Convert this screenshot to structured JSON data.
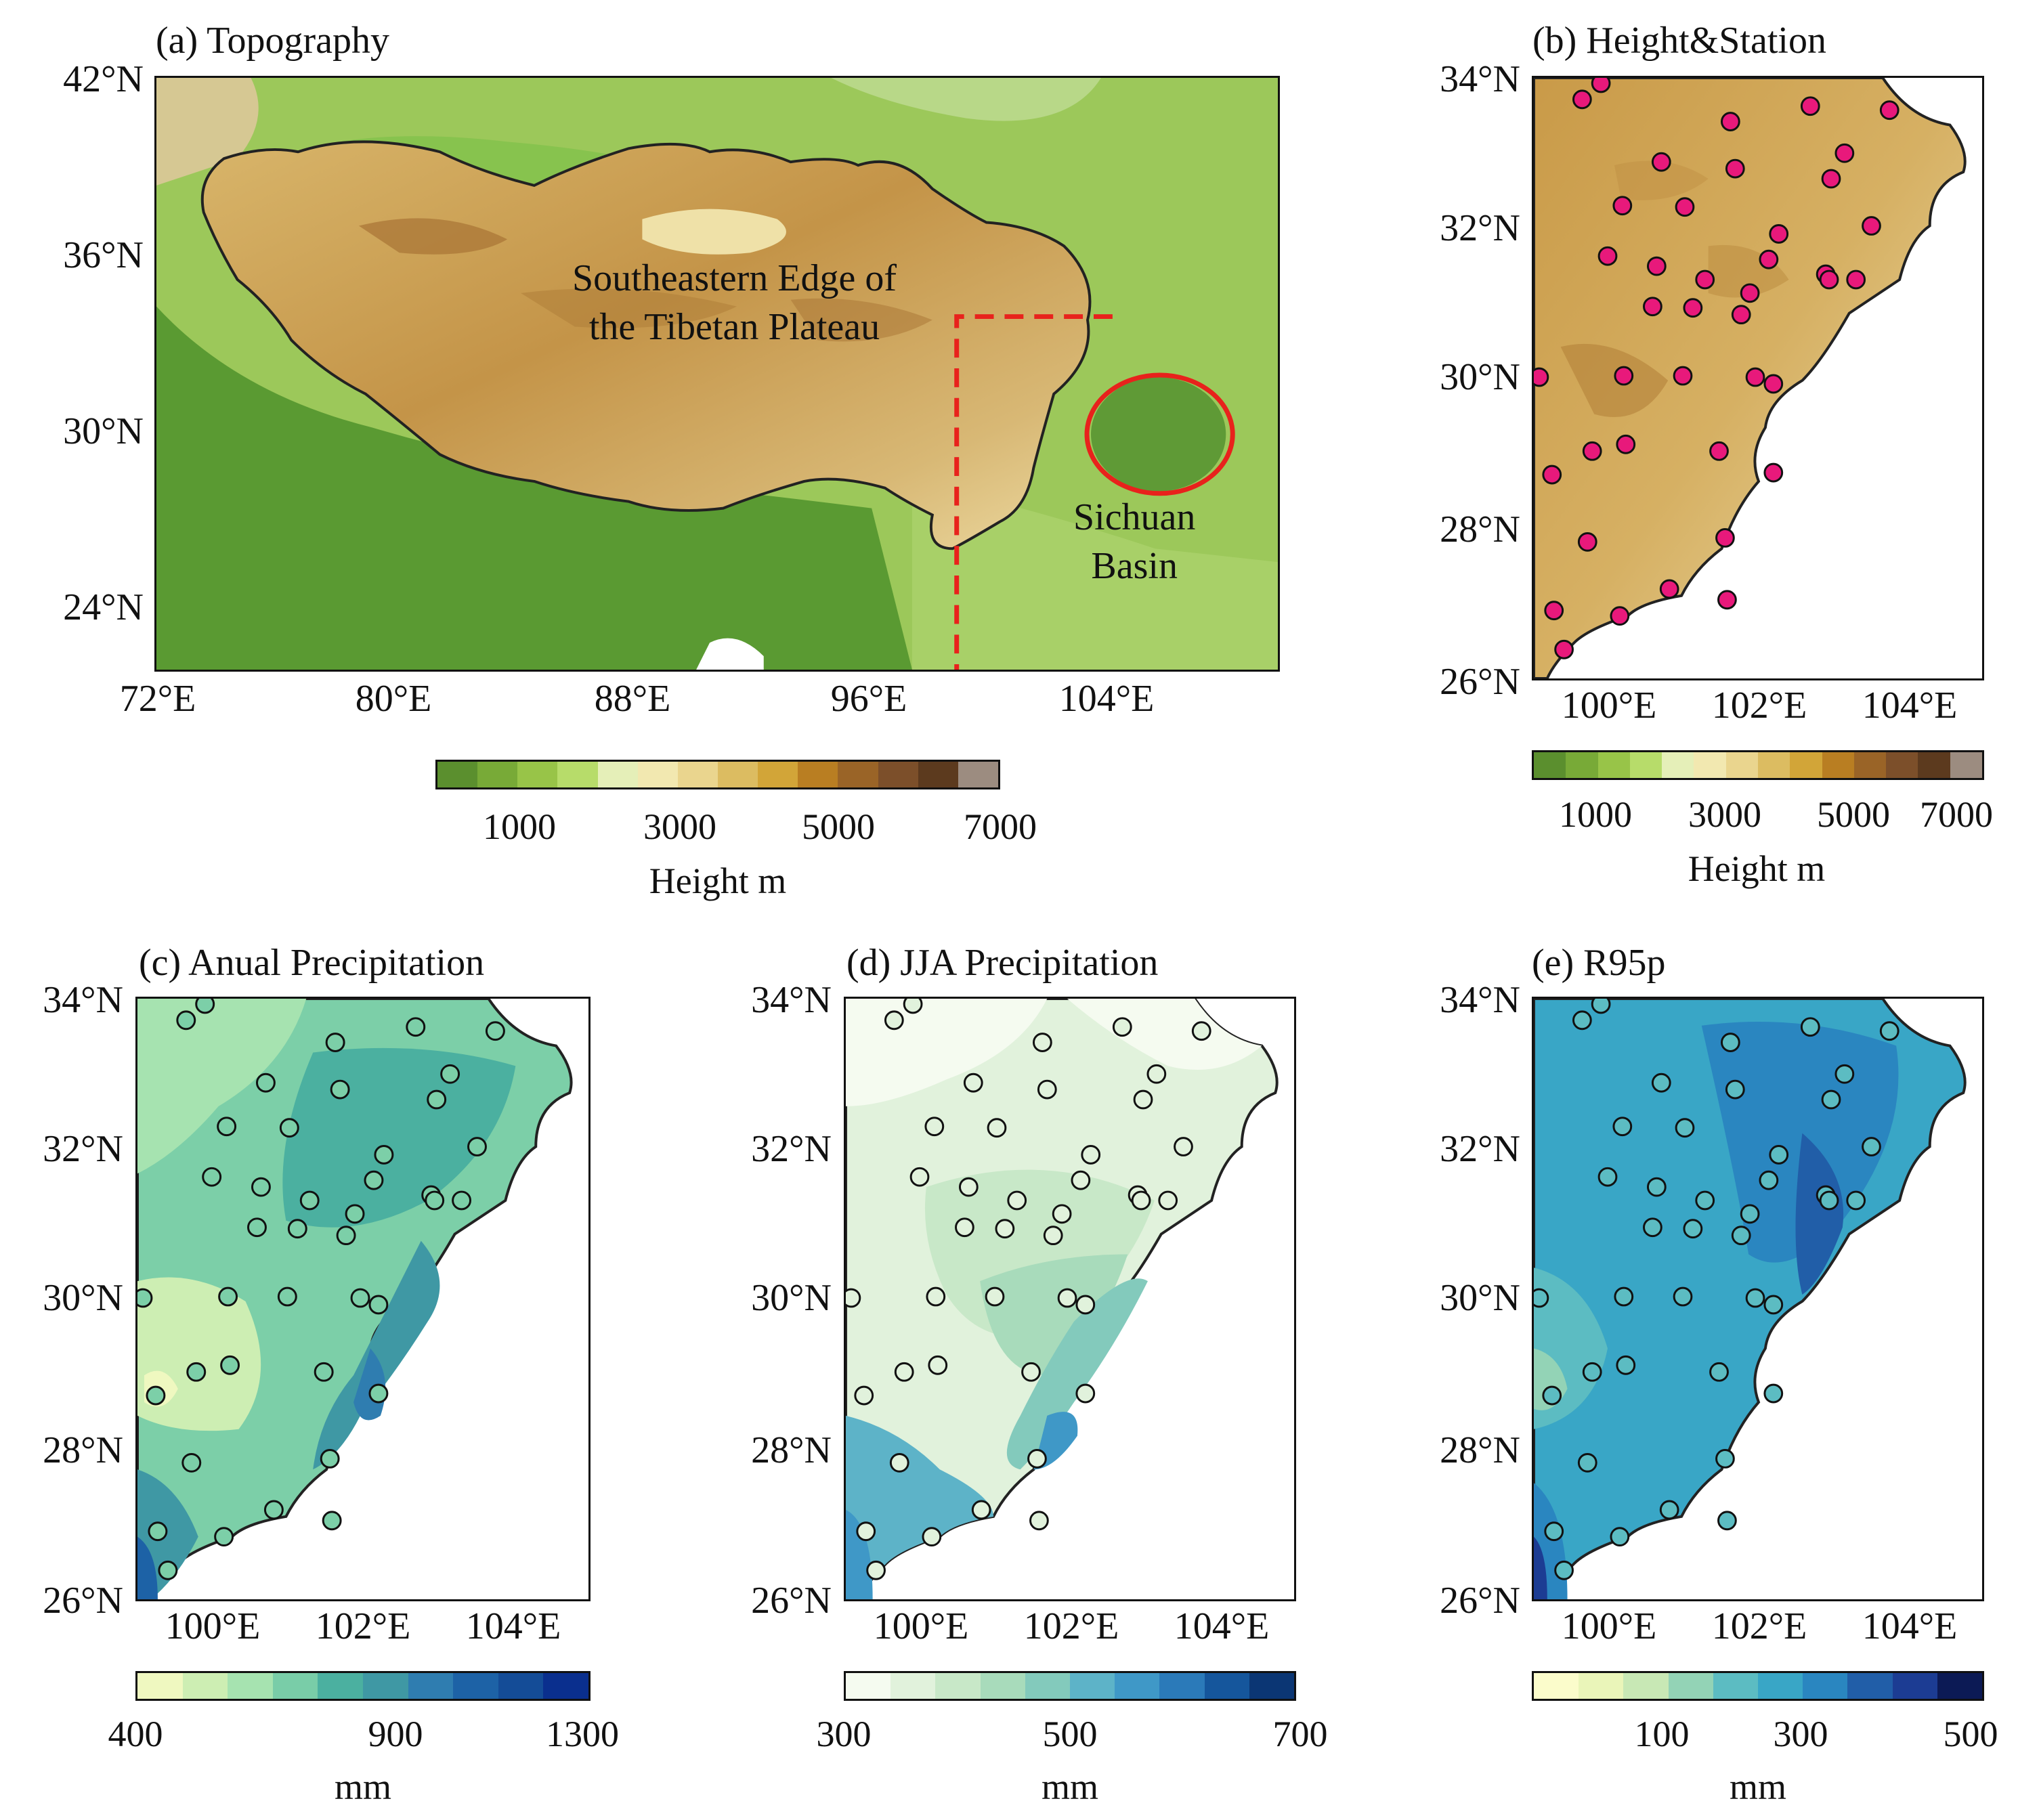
{
  "panel_a": {
    "title": "(a) Topography",
    "y_ticks": [
      "42°N",
      "36°N",
      "30°N",
      "24°N"
    ],
    "x_ticks": [
      "72°E",
      "80°E",
      "88°E",
      "96°E",
      "104°E"
    ],
    "region_label_line1": "Southeastern Edge of",
    "region_label_line2": "the Tibetan Plateau",
    "basin_label_line1": "Sichuan",
    "basin_label_line2": "Basin",
    "colorbar": {
      "ticks": [
        "1000",
        "3000",
        "5000",
        "7000"
      ],
      "title": "Height m",
      "colors": [
        "#5b8f2e",
        "#78aa37",
        "#98c448",
        "#b7dc6a",
        "#e5efb8",
        "#f2e8b0",
        "#ead58e",
        "#dcbc61",
        "#d2a538",
        "#b97e22",
        "#9a6427",
        "#7c4f2a",
        "#5c3a1e",
        "#9c8c80"
      ]
    }
  },
  "panel_b": {
    "title": "(b) Height&Station",
    "y_ticks": [
      "34°N",
      "32°N",
      "30°N",
      "28°N",
      "26°N"
    ],
    "x_ticks": [
      "100°E",
      "102°E",
      "104°E"
    ],
    "station_color": "#e8197b",
    "colorbar": {
      "ticks": [
        "1000",
        "3000",
        "5000",
        "7000"
      ],
      "title": "Height m",
      "colors": [
        "#5b8f2e",
        "#78aa37",
        "#98c448",
        "#b7dc6a",
        "#e5efb8",
        "#f2e8b0",
        "#ead58e",
        "#dcbc61",
        "#d2a538",
        "#b97e22",
        "#9a6427",
        "#7c4f2a",
        "#5c3a1e",
        "#9c8c80"
      ]
    }
  },
  "panel_c": {
    "title": "(c) Anual Precipitation",
    "y_ticks": [
      "34°N",
      "32°N",
      "30°N",
      "28°N",
      "26°N"
    ],
    "x_ticks": [
      "100°E",
      "102°E",
      "104°E"
    ],
    "colorbar": {
      "ticks": [
        "400",
        "900",
        "1300"
      ],
      "title": "mm",
      "colors": [
        "#eff8c0",
        "#cdeeb3",
        "#a6e3b0",
        "#79cda8",
        "#4bb0a0",
        "#3f98a4",
        "#2f7db0",
        "#1d62a6",
        "#144c97",
        "#0a2f8e"
      ]
    }
  },
  "panel_d": {
    "title": "(d) JJA Precipitation",
    "y_ticks": [
      "34°N",
      "32°N",
      "30°N",
      "28°N",
      "26°N"
    ],
    "x_ticks": [
      "100°E",
      "102°E",
      "104°E"
    ],
    "colorbar": {
      "ticks": [
        "300",
        "500",
        "700"
      ],
      "title": "mm",
      "colors": [
        "#f5fbf0",
        "#e1f2dc",
        "#c8e8c8",
        "#a8dbbb",
        "#83cabc",
        "#5db3c8",
        "#3f98c7",
        "#2b7ab9",
        "#15569c",
        "#0b3674"
      ]
    }
  },
  "panel_e": {
    "title": "(e) R95p",
    "y_ticks": [
      "34°N",
      "32°N",
      "30°N",
      "28°N",
      "26°N"
    ],
    "x_ticks": [
      "100°E",
      "102°E",
      "104°E"
    ],
    "colorbar": {
      "ticks": [
        "100",
        "300",
        "500"
      ],
      "title": "mm",
      "colors": [
        "#fbfccb",
        "#eaf5b9",
        "#c8e8b5",
        "#93d3b6",
        "#5cbcc2",
        "#39a6c6",
        "#2a86c0",
        "#215ea8",
        "#1c3c93",
        "#0c1a55"
      ]
    }
  }
}
